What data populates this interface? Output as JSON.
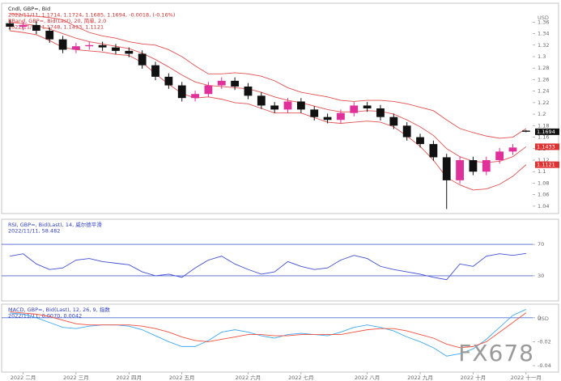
{
  "watermark": "FX678",
  "chart_data": [
    {
      "type": "candlestick",
      "axis_unit": "USD",
      "up_color": "#e0309a",
      "down_color": "#111111",
      "legend": [
        {
          "text": "Cndl, GBP=, Bid",
          "color": "#222222"
        },
        {
          "text": "2022/11/11, 1.1714, 1.1724, 1.1685, 1.1694, -0.0018, (-0.16%)",
          "color": "#d03030"
        },
        {
          "text": "BBand, GBP=, Bid(Last), 20, 简单, 2.0",
          "color": "#d03030"
        },
        {
          "text": "2022/11/11, 1.1748, 1.1433, 1.1121",
          "color": "#d03030"
        }
      ],
      "open": [
        1.358,
        1.352,
        1.355,
        1.345,
        1.33,
        1.312,
        1.318,
        1.32,
        1.316,
        1.31,
        1.305,
        1.285,
        1.265,
        1.25,
        1.228,
        1.235,
        1.25,
        1.258,
        1.248,
        1.232,
        1.215,
        1.208,
        1.222,
        1.208,
        1.195,
        1.19,
        1.202,
        1.215,
        1.21,
        1.195,
        1.18,
        1.16,
        1.148,
        1.125,
        1.085,
        1.12,
        1.1,
        1.12,
        1.135,
        1.1714
      ],
      "high": [
        1.364,
        1.361,
        1.361,
        1.351,
        1.336,
        1.324,
        1.326,
        1.326,
        1.322,
        1.316,
        1.311,
        1.291,
        1.271,
        1.256,
        1.241,
        1.256,
        1.264,
        1.264,
        1.254,
        1.238,
        1.221,
        1.228,
        1.228,
        1.214,
        1.201,
        1.208,
        1.221,
        1.221,
        1.216,
        1.201,
        1.186,
        1.166,
        1.154,
        1.131,
        1.126,
        1.126,
        1.126,
        1.141,
        1.148,
        1.1724
      ],
      "low": [
        1.346,
        1.346,
        1.339,
        1.324,
        1.306,
        1.306,
        1.312,
        1.31,
        1.304,
        1.299,
        1.279,
        1.259,
        1.244,
        1.222,
        1.222,
        1.229,
        1.244,
        1.242,
        1.226,
        1.209,
        1.202,
        1.202,
        1.202,
        1.189,
        1.184,
        1.184,
        1.196,
        1.204,
        1.189,
        1.174,
        1.154,
        1.142,
        1.119,
        1.035,
        1.079,
        1.094,
        1.094,
        1.114,
        1.129,
        1.1685
      ],
      "close": [
        1.352,
        1.355,
        1.345,
        1.33,
        1.312,
        1.318,
        1.32,
        1.316,
        1.31,
        1.305,
        1.285,
        1.265,
        1.25,
        1.228,
        1.235,
        1.25,
        1.258,
        1.248,
        1.232,
        1.215,
        1.208,
        1.222,
        1.208,
        1.195,
        1.19,
        1.202,
        1.215,
        1.21,
        1.195,
        1.18,
        1.16,
        1.148,
        1.125,
        1.085,
        1.12,
        1.1,
        1.12,
        1.135,
        1.142,
        1.1694
      ],
      "bands": [
        {
          "color": "#e05050",
          "values": [
            1.375,
            1.372,
            1.37,
            1.368,
            1.364,
            1.352,
            1.342,
            1.336,
            1.332,
            1.326,
            1.322,
            1.32,
            1.312,
            1.3,
            1.284,
            1.27,
            1.27,
            1.272,
            1.27,
            1.266,
            1.258,
            1.246,
            1.238,
            1.234,
            1.23,
            1.224,
            1.222,
            1.224,
            1.224,
            1.222,
            1.218,
            1.212,
            1.206,
            1.19,
            1.175,
            1.168,
            1.162,
            1.158,
            1.16,
            1.1748
          ]
        },
        {
          "color": "#e05050",
          "values": [
            1.36,
            1.357,
            1.354,
            1.348,
            1.34,
            1.332,
            1.326,
            1.322,
            1.318,
            1.314,
            1.306,
            1.295,
            1.282,
            1.268,
            1.256,
            1.25,
            1.248,
            1.246,
            1.244,
            1.238,
            1.23,
            1.224,
            1.22,
            1.214,
            1.208,
            1.204,
            1.204,
            1.206,
            1.205,
            1.2,
            1.19,
            1.178,
            1.163,
            1.14,
            1.126,
            1.118,
            1.116,
            1.118,
            1.126,
            1.1433
          ]
        },
        {
          "color": "#e05050",
          "values": [
            1.345,
            1.342,
            1.338,
            1.328,
            1.316,
            1.312,
            1.31,
            1.308,
            1.304,
            1.302,
            1.29,
            1.27,
            1.252,
            1.236,
            1.228,
            1.23,
            1.226,
            1.22,
            1.218,
            1.21,
            1.202,
            1.202,
            1.202,
            1.194,
            1.186,
            1.184,
            1.186,
            1.188,
            1.186,
            1.178,
            1.162,
            1.144,
            1.12,
            1.09,
            1.077,
            1.068,
            1.07,
            1.078,
            1.092,
            1.1121
          ]
        }
      ],
      "ylim": [
        1.03,
        1.39
      ],
      "yticks": [
        1.04,
        1.06,
        1.08,
        1.1,
        1.12,
        1.14,
        1.16,
        1.18,
        1.2,
        1.22,
        1.24,
        1.26,
        1.28,
        1.3,
        1.32,
        1.34,
        1.36
      ]
    },
    {
      "type": "line",
      "grid": true,
      "grid_color": "#5060d0",
      "legend": [
        {
          "text": "RSI, GBP=, Bid(Last), 14, 威尔德平滑",
          "color": "#3040c0"
        },
        {
          "text": "2022/11/11, 58.482",
          "color": "#3040c0"
        }
      ],
      "series": [
        {
          "color": "#4050d0",
          "values": [
            55,
            58,
            45,
            38,
            40,
            50,
            52,
            48,
            46,
            44,
            35,
            30,
            32,
            28,
            40,
            50,
            55,
            45,
            38,
            32,
            35,
            48,
            42,
            38,
            40,
            50,
            56,
            52,
            42,
            38,
            35,
            32,
            28,
            25,
            45,
            42,
            55,
            58,
            56,
            58.482
          ]
        }
      ],
      "ylim": [
        0,
        100
      ],
      "yticks": [
        30,
        70
      ]
    },
    {
      "type": "line",
      "axis_unit": "USD",
      "legend": [
        {
          "text": "MACD, GBP=, Bid(Last), 12, 26, 9, 指数",
          "color": "#3040c0"
        },
        {
          "text": "2022/11/11, 0.0070, 0.0042",
          "color": "#3040c0"
        }
      ],
      "series": [
        {
          "color": "#40a8f0",
          "values": [
            0.004,
            0.003,
            0.0,
            -0.004,
            -0.008,
            -0.009,
            -0.007,
            -0.006,
            -0.006,
            -0.007,
            -0.01,
            -0.015,
            -0.02,
            -0.024,
            -0.024,
            -0.019,
            -0.012,
            -0.01,
            -0.012,
            -0.015,
            -0.017,
            -0.014,
            -0.013,
            -0.014,
            -0.015,
            -0.012,
            -0.008,
            -0.006,
            -0.008,
            -0.011,
            -0.016,
            -0.02,
            -0.025,
            -0.032,
            -0.03,
            -0.026,
            -0.018,
            -0.008,
            0.002,
            0.007
          ]
        },
        {
          "color": "#f05040",
          "values": [
            0.005,
            0.004,
            0.003,
            0.001,
            -0.002,
            -0.005,
            -0.006,
            -0.006,
            -0.006,
            -0.006,
            -0.007,
            -0.009,
            -0.012,
            -0.016,
            -0.019,
            -0.02,
            -0.018,
            -0.016,
            -0.014,
            -0.014,
            -0.015,
            -0.015,
            -0.014,
            -0.014,
            -0.014,
            -0.014,
            -0.012,
            -0.01,
            -0.009,
            -0.009,
            -0.011,
            -0.014,
            -0.017,
            -0.022,
            -0.025,
            -0.024,
            -0.02,
            -0.012,
            -0.004,
            0.0042
          ]
        }
      ],
      "ylim": [
        -0.044,
        0.01
      ],
      "yticks": [
        -0.04,
        -0.02,
        0
      ],
      "xticks": [
        {
          "value": 1,
          "label": "2022 二月"
        },
        {
          "value": 5,
          "label": "2022 三月"
        },
        {
          "value": 9,
          "label": "2022 四月"
        },
        {
          "value": 13,
          "label": "2022 五月"
        },
        {
          "value": 18,
          "label": "2022 六月"
        },
        {
          "value": 22,
          "label": "2022 七月"
        },
        {
          "value": 27,
          "label": "2022 八月"
        },
        {
          "value": 31,
          "label": "2022 九月"
        },
        {
          "value": 35,
          "label": "2022 十月"
        },
        {
          "value": 39,
          "label": "2022 十一月"
        }
      ]
    }
  ]
}
